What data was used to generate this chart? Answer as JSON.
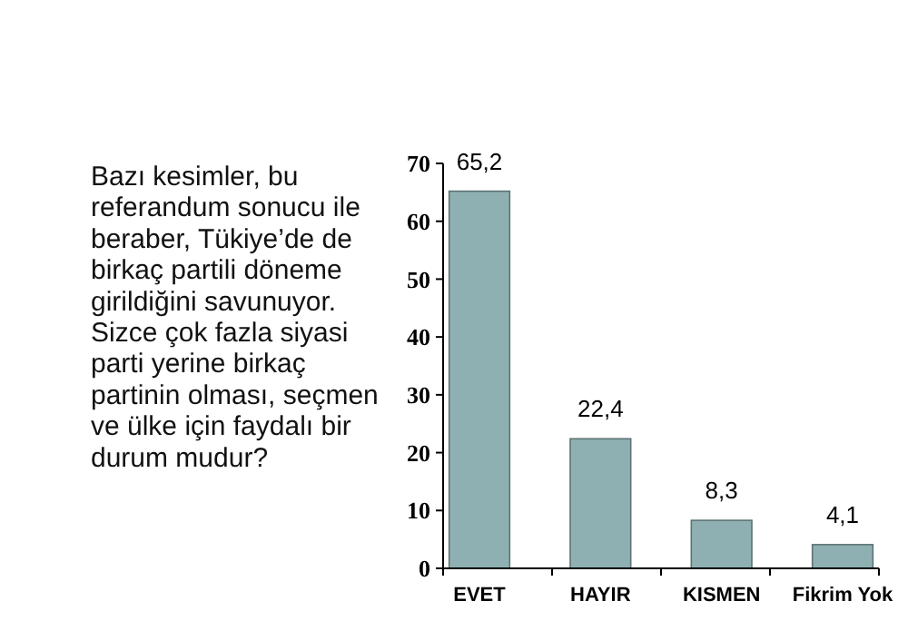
{
  "chart_data": {
    "type": "bar",
    "title": "Bazı kesimler, bu referandum sonucu ile beraber, Tükiye’de de birkaç partili döneme girildiğini savunuyor. Sizce çok fazla siyasi parti yerine birkaç partinin olması, seçmen ve ülke için faydalı bir durum mudur?",
    "categories": [
      "EVET",
      "HAYIR",
      "KISMEN",
      "Fikrim Yok"
    ],
    "values": [
      65.2,
      22.4,
      8.3,
      4.1
    ],
    "value_labels": [
      "65,2",
      "22,4",
      "8,3",
      "4,1"
    ],
    "color": "#8fb0b2",
    "ylim": [
      0,
      70
    ],
    "yticks": [
      0,
      10,
      20,
      30,
      40,
      50,
      60,
      70
    ],
    "grid": false
  }
}
